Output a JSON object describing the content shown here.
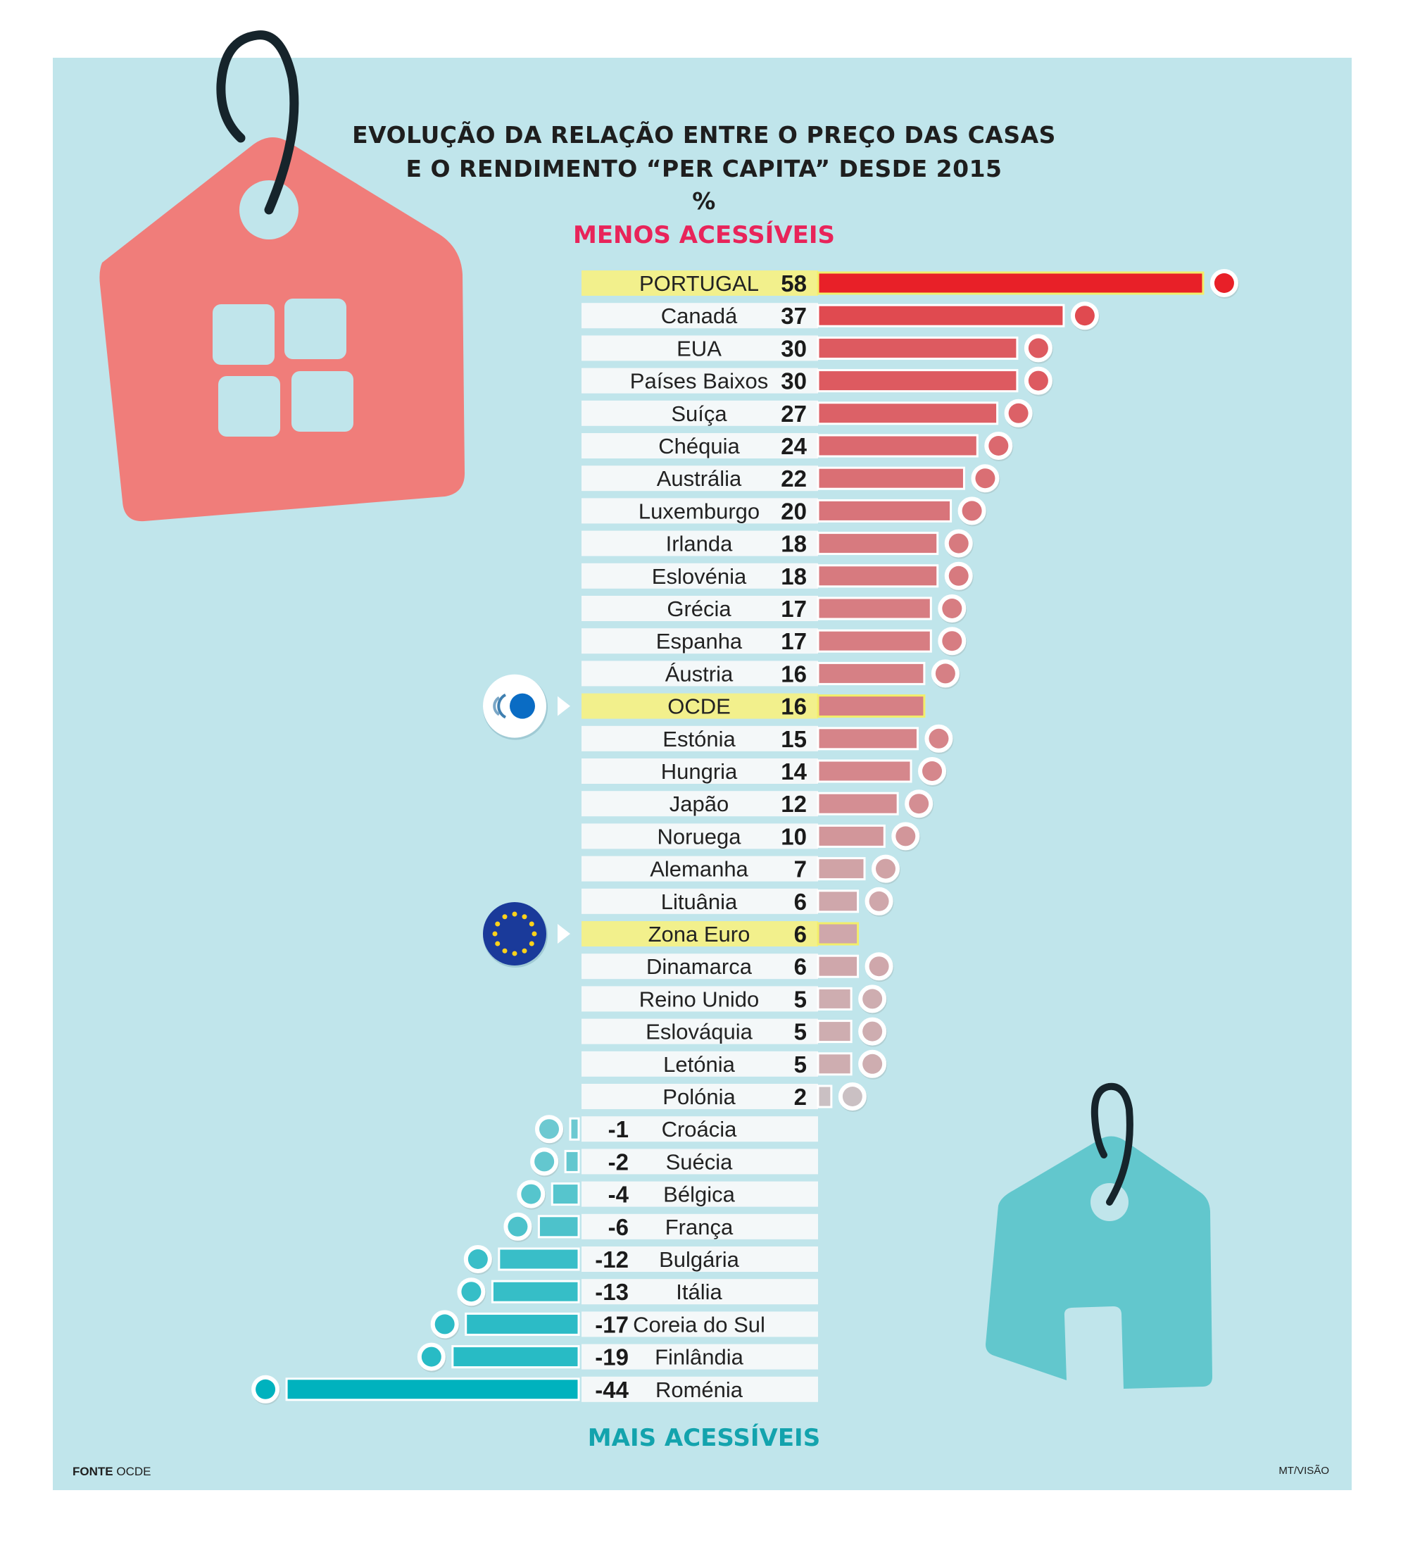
{
  "header": {
    "title_line1": "EVOLUÇÃO DA RELAÇÃO ENTRE O PREÇO DAS CASAS",
    "title_line2": "E O RENDIMENTO “PER CAPITA” DESDE 2015",
    "unit": "%",
    "top_label": "MENOS ACESSÍVEIS",
    "bottom_label": "MAIS ACESSÍVEIS"
  },
  "footer": {
    "source_label": "FONTE",
    "source": "OCDE",
    "credit": "MT/VISÃO"
  },
  "colors": {
    "background": "#c0e5eb",
    "top_label": "#e8245a",
    "bottom_label": "#13a3ad",
    "highlight_row": "#f2f08c",
    "row": "#f4f8f9",
    "tag_red": "#f07d7a",
    "tag_teal": "#62c7cd"
  },
  "chart_data": {
    "type": "bar",
    "orientation": "horizontal",
    "unit": "%",
    "highlighted": [
      "PORTUGAL",
      "OCDE",
      "Zona Euro"
    ],
    "categories": [
      "PORTUGAL",
      "Canadá",
      "EUA",
      "Países Baixos",
      "Suíça",
      "Chéquia",
      "Austrália",
      "Luxemburgo",
      "Irlanda",
      "Eslovénia",
      "Grécia",
      "Espanha",
      "Áustria",
      "OCDE",
      "Estónia",
      "Hungria",
      "Japão",
      "Noruega",
      "Alemanha",
      "Lituânia",
      "Zona Euro",
      "Dinamarca",
      "Reino Unido",
      "Eslováquia",
      "Letónia",
      "Polónia",
      "Croácia",
      "Suécia",
      "Bélgica",
      "França",
      "Bulgária",
      "Itália",
      "Coreia do Sul",
      "Finlândia",
      "Roménia"
    ],
    "values": [
      58,
      37,
      30,
      30,
      27,
      24,
      22,
      20,
      18,
      18,
      17,
      17,
      16,
      16,
      15,
      14,
      12,
      10,
      7,
      6,
      6,
      6,
      5,
      5,
      5,
      2,
      -1,
      -2,
      -4,
      -6,
      -12,
      -13,
      -17,
      -19,
      -44
    ],
    "value_labels": [
      "58",
      "37",
      "30",
      "30",
      "27",
      "24",
      "22",
      "20",
      "18",
      "18",
      "17",
      "17",
      "16",
      "16",
      "15",
      "14",
      "12",
      "10",
      "7",
      "6",
      "6",
      "6",
      "5",
      "5",
      "5",
      "2",
      "-1",
      "-2",
      "-4",
      "-6",
      "-12",
      "-13",
      "-17",
      "-19",
      "-44"
    ]
  }
}
